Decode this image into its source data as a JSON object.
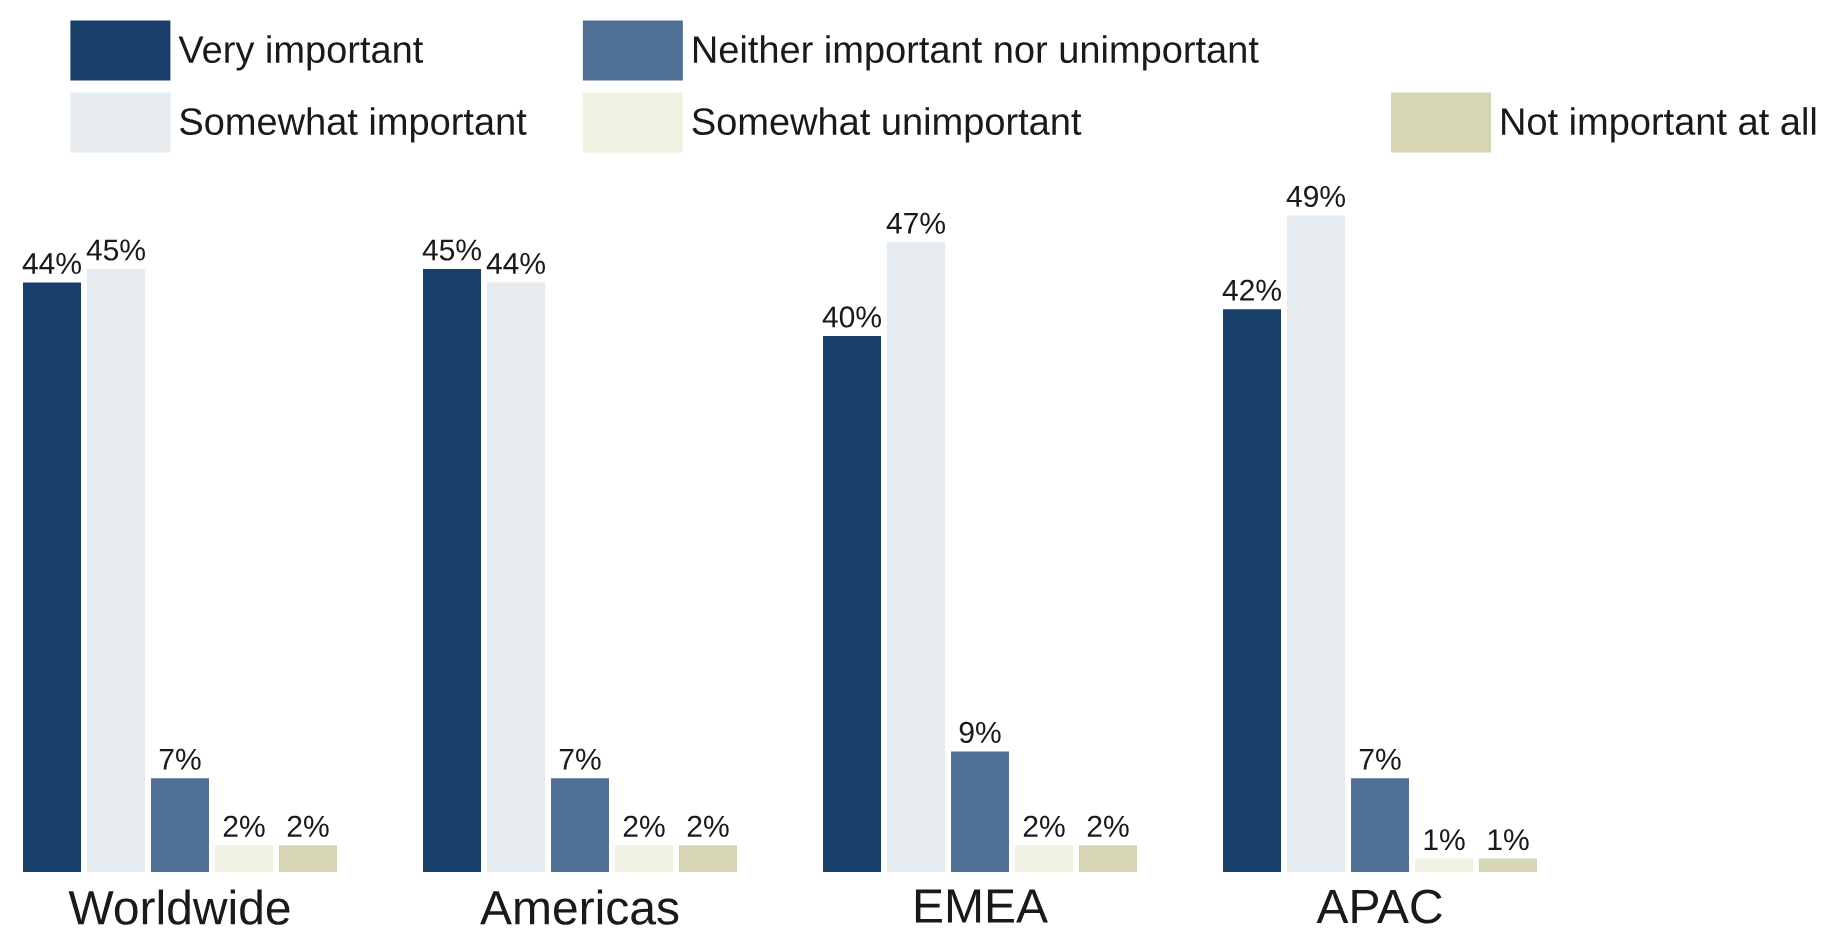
{
  "chart_data": {
    "type": "bar",
    "categories": [
      "Worldwide",
      "Americas",
      "EMEA",
      "APAC"
    ],
    "series": [
      {
        "name": "Very important",
        "color": "#173f69",
        "values": [
          44,
          45,
          40,
          42
        ],
        "value_labels": [
          "44%",
          "45%",
          "40%",
          "42%"
        ]
      },
      {
        "name": "Somewhat important",
        "color": "#e6ebf0",
        "values": [
          45,
          44,
          47,
          49
        ],
        "value_labels": [
          "45%",
          "44%",
          "47%",
          "49%"
        ]
      },
      {
        "name": "Neither important nor unimportant",
        "color": "#4f7094",
        "values": [
          7,
          7,
          9,
          7
        ],
        "value_labels": [
          "7%",
          "7%",
          "9%",
          "7%"
        ]
      },
      {
        "name": "Somewhat unimportant",
        "color": "#f0f3e2",
        "values": [
          2,
          2,
          2,
          1
        ],
        "value_labels": [
          "2%",
          "2%",
          "2%",
          "1%"
        ]
      },
      {
        "name": "Not important at all",
        "color": "#d6d5b4",
        "values": [
          2,
          2,
          2,
          1
        ],
        "value_labels": [
          "2%",
          "2%",
          "2%",
          "1%"
        ]
      }
    ],
    "tick_labels": "x",
    "legend": "top"
  }
}
